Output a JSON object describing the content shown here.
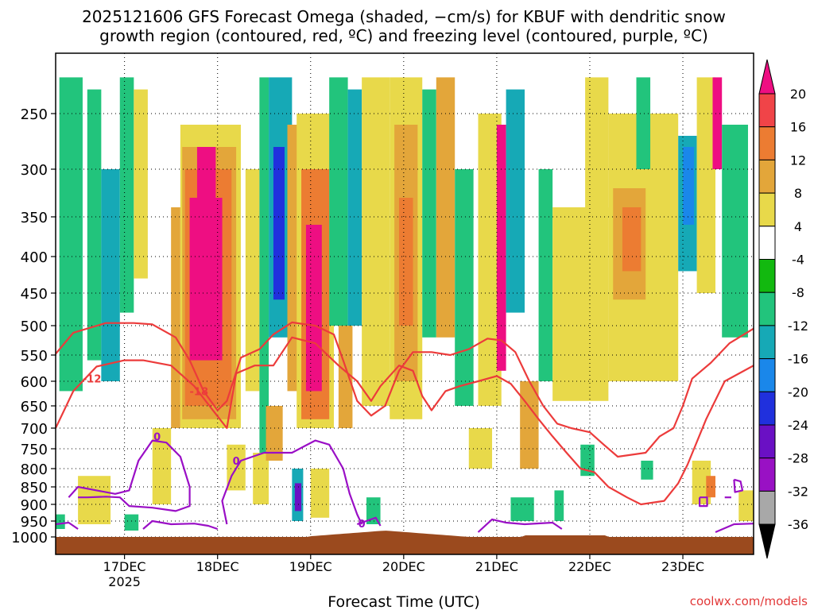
{
  "chart_data": {
    "type": "heatmap",
    "title_line1": "2025121606 GFS Forecast Omega (shaded, −cm/s) for KBUF with dendritic snow",
    "title_line2": "growth region (contoured, red, ºC) and freezing level (contoured, purple, ºC)",
    "xlabel": "Forecast Time (UTC)",
    "credit": "coolwx.com/models",
    "x_range_days": [
      16.26,
      23.76
    ],
    "x_ticks": [
      {
        "day": 17,
        "label": "17DEC",
        "sublabel": "2025"
      },
      {
        "day": 18,
        "label": "18DEC"
      },
      {
        "day": 19,
        "label": "19DEC"
      },
      {
        "day": 20,
        "label": "20DEC"
      },
      {
        "day": 21,
        "label": "21DEC"
      },
      {
        "day": 22,
        "label": "22DEC"
      },
      {
        "day": 23,
        "label": "23DEC"
      }
    ],
    "y_ticks": [
      250,
      300,
      350,
      400,
      450,
      500,
      550,
      600,
      650,
      700,
      750,
      800,
      850,
      900,
      950,
      1000
    ],
    "colorbar": {
      "labels": [
        "20",
        "16",
        "12",
        "8",
        "4",
        "-4",
        "-8",
        "-12",
        "-16",
        "-20",
        "-24",
        "-28",
        "-32",
        "-36"
      ],
      "colors": [
        "#ee0e82",
        "#f04448",
        "#ec7c32",
        "#e3a63a",
        "#e8d94a",
        "#ffffff",
        "#12b90f",
        "#22c47c",
        "#16a9b6",
        "#1a87ea",
        "#2030dd",
        "#6a10c4",
        "#9911c4",
        "#a8a8a8",
        "#000000"
      ]
    },
    "omega_cells": [
      {
        "t0": 16.3,
        "t1": 16.55,
        "p0": 220,
        "p1": 620,
        "v": -8
      },
      {
        "t0": 16.6,
        "t1": 16.75,
        "p0": 230,
        "p1": 560,
        "v": -8
      },
      {
        "t0": 16.75,
        "t1": 16.95,
        "p0": 300,
        "p1": 600,
        "v": -12
      },
      {
        "t0": 16.95,
        "t1": 17.1,
        "p0": 220,
        "p1": 480,
        "v": -8
      },
      {
        "t0": 17.1,
        "t1": 17.25,
        "p0": 230,
        "p1": 430,
        "v": 5
      },
      {
        "t0": 17.3,
        "t1": 17.5,
        "p0": 700,
        "p1": 900,
        "v": 5
      },
      {
        "t0": 17.5,
        "t1": 17.6,
        "p0": 340,
        "p1": 700,
        "v": 8
      },
      {
        "t0": 17.6,
        "t1": 18.25,
        "p0": 260,
        "p1": 700,
        "v": 5
      },
      {
        "t0": 17.62,
        "t1": 18.2,
        "p0": 280,
        "p1": 680,
        "v": 10
      },
      {
        "t0": 17.65,
        "t1": 18.15,
        "p0": 300,
        "p1": 650,
        "v": 15
      },
      {
        "t0": 17.7,
        "t1": 18.05,
        "p0": 330,
        "p1": 560,
        "v": 21
      },
      {
        "t0": 17.78,
        "t1": 17.98,
        "p0": 280,
        "p1": 360,
        "v": 21
      },
      {
        "t0": 18.3,
        "t1": 18.45,
        "p0": 300,
        "p1": 620,
        "v": 5
      },
      {
        "t0": 18.45,
        "t1": 18.55,
        "p0": 220,
        "p1": 800,
        "v": -8
      },
      {
        "t0": 18.55,
        "t1": 18.8,
        "p0": 220,
        "p1": 520,
        "v": -14
      },
      {
        "t0": 18.6,
        "t1": 18.72,
        "p0": 280,
        "p1": 460,
        "v": -22
      },
      {
        "t0": 18.75,
        "t1": 18.9,
        "p0": 260,
        "p1": 620,
        "v": 8
      },
      {
        "t0": 18.85,
        "t1": 19.25,
        "p0": 250,
        "p1": 700,
        "v": 5
      },
      {
        "t0": 18.9,
        "t1": 19.2,
        "p0": 300,
        "p1": 680,
        "v": 15
      },
      {
        "t0": 18.95,
        "t1": 19.12,
        "p0": 360,
        "p1": 620,
        "v": 21
      },
      {
        "t0": 19.2,
        "t1": 19.4,
        "p0": 220,
        "p1": 500,
        "v": -8
      },
      {
        "t0": 19.3,
        "t1": 19.45,
        "p0": 500,
        "p1": 700,
        "v": 10
      },
      {
        "t0": 19.4,
        "t1": 19.55,
        "p0": 230,
        "p1": 500,
        "v": -12
      },
      {
        "t0": 19.55,
        "t1": 19.85,
        "p0": 220,
        "p1": 650,
        "v": 5
      },
      {
        "t0": 19.85,
        "t1": 20.2,
        "p0": 220,
        "p1": 680,
        "v": 5
      },
      {
        "t0": 19.9,
        "t1": 20.15,
        "p0": 260,
        "p1": 600,
        "v": 10
      },
      {
        "t0": 19.95,
        "t1": 20.1,
        "p0": 330,
        "p1": 500,
        "v": 15
      },
      {
        "t0": 20.2,
        "t1": 20.35,
        "p0": 230,
        "p1": 520,
        "v": -8
      },
      {
        "t0": 20.35,
        "t1": 20.55,
        "p0": 220,
        "p1": 520,
        "v": 8
      },
      {
        "t0": 20.55,
        "t1": 20.75,
        "p0": 300,
        "p1": 650,
        "v": -8
      },
      {
        "t0": 20.8,
        "t1": 21.05,
        "p0": 250,
        "p1": 650,
        "v": 5
      },
      {
        "t0": 21.0,
        "t1": 21.1,
        "p0": 260,
        "p1": 580,
        "v": 21
      },
      {
        "t0": 21.1,
        "t1": 21.3,
        "p0": 230,
        "p1": 480,
        "v": -12
      },
      {
        "t0": 21.25,
        "t1": 21.45,
        "p0": 600,
        "p1": 800,
        "v": 8
      },
      {
        "t0": 21.45,
        "t1": 21.6,
        "p0": 300,
        "p1": 600,
        "v": -8
      },
      {
        "t0": 21.6,
        "t1": 22.2,
        "p0": 340,
        "p1": 640,
        "v": 5
      },
      {
        "t0": 21.95,
        "t1": 22.2,
        "p0": 220,
        "p1": 350,
        "v": 5
      },
      {
        "t0": 22.2,
        "t1": 22.95,
        "p0": 250,
        "p1": 600,
        "v": 5
      },
      {
        "t0": 22.25,
        "t1": 22.6,
        "p0": 320,
        "p1": 460,
        "v": 10
      },
      {
        "t0": 22.35,
        "t1": 22.55,
        "p0": 340,
        "p1": 420,
        "v": 14
      },
      {
        "t0": 22.5,
        "t1": 22.65,
        "p0": 220,
        "p1": 300,
        "v": -8
      },
      {
        "t0": 22.95,
        "t1": 23.15,
        "p0": 270,
        "p1": 420,
        "v": -12
      },
      {
        "t0": 23.0,
        "t1": 23.12,
        "p0": 280,
        "p1": 360,
        "v": -17
      },
      {
        "t0": 23.15,
        "t1": 23.35,
        "p0": 220,
        "p1": 450,
        "v": 5
      },
      {
        "t0": 23.32,
        "t1": 23.42,
        "p0": 220,
        "p1": 300,
        "v": 21
      },
      {
        "t0": 23.42,
        "t1": 23.7,
        "p0": 260,
        "p1": 520,
        "v": -8
      },
      {
        "t0": 16.5,
        "t1": 16.85,
        "p0": 820,
        "p1": 960,
        "v": 5
      },
      {
        "t0": 16.26,
        "t1": 16.36,
        "p0": 930,
        "p1": 975,
        "v": -8
      },
      {
        "t0": 17.0,
        "t1": 17.15,
        "p0": 930,
        "p1": 980,
        "v": -8
      },
      {
        "t0": 18.1,
        "t1": 18.3,
        "p0": 740,
        "p1": 860,
        "v": 5
      },
      {
        "t0": 18.38,
        "t1": 18.55,
        "p0": 760,
        "p1": 900,
        "v": 5
      },
      {
        "t0": 18.52,
        "t1": 18.7,
        "p0": 650,
        "p1": 780,
        "v": 10
      },
      {
        "t0": 18.8,
        "t1": 18.92,
        "p0": 800,
        "p1": 950,
        "v": -12
      },
      {
        "t0": 18.83,
        "t1": 18.9,
        "p0": 840,
        "p1": 920,
        "v": -26
      },
      {
        "t0": 19.0,
        "t1": 19.2,
        "p0": 800,
        "p1": 940,
        "v": 5
      },
      {
        "t0": 19.6,
        "t1": 19.75,
        "p0": 880,
        "p1": 960,
        "v": -8
      },
      {
        "t0": 20.7,
        "t1": 20.95,
        "p0": 700,
        "p1": 800,
        "v": 5
      },
      {
        "t0": 21.15,
        "t1": 21.4,
        "p0": 880,
        "p1": 950,
        "v": -8
      },
      {
        "t0": 21.62,
        "t1": 21.72,
        "p0": 860,
        "p1": 950,
        "v": -8
      },
      {
        "t0": 21.9,
        "t1": 22.05,
        "p0": 740,
        "p1": 820,
        "v": -8
      },
      {
        "t0": 22.55,
        "t1": 22.68,
        "p0": 780,
        "p1": 830,
        "v": -8
      },
      {
        "t0": 23.1,
        "t1": 23.3,
        "p0": 780,
        "p1": 900,
        "v": 5
      },
      {
        "t0": 23.25,
        "t1": 23.35,
        "p0": 820,
        "p1": 880,
        "v": 12
      },
      {
        "t0": 23.6,
        "t1": 23.76,
        "p0": 860,
        "p1": 950,
        "v": 5
      }
    ],
    "contours_dgz": [
      {
        "label": "-12",
        "label_at": [
          16.65,
          595
        ],
        "points": [
          [
            16.26,
            700
          ],
          [
            16.45,
            620
          ],
          [
            16.7,
            572
          ],
          [
            17.0,
            560
          ],
          [
            17.2,
            560
          ],
          [
            17.5,
            570
          ],
          [
            17.75,
            610
          ],
          [
            17.95,
            660
          ],
          [
            18.1,
            700
          ],
          [
            18.2,
            585
          ],
          [
            18.4,
            570
          ],
          [
            18.6,
            570
          ],
          [
            18.8,
            520
          ],
          [
            19.05,
            530
          ],
          [
            19.3,
            570
          ],
          [
            19.5,
            600
          ],
          [
            19.65,
            640
          ],
          [
            19.75,
            610
          ],
          [
            19.95,
            570
          ],
          [
            20.1,
            580
          ],
          [
            20.2,
            630
          ],
          [
            20.3,
            660
          ],
          [
            20.45,
            620
          ],
          [
            20.6,
            610
          ],
          [
            20.8,
            600
          ],
          [
            21.0,
            590
          ],
          [
            21.15,
            605
          ],
          [
            21.3,
            640
          ],
          [
            21.45,
            680
          ],
          [
            21.6,
            720
          ],
          [
            21.75,
            760
          ],
          [
            21.9,
            800
          ],
          [
            22.05,
            810
          ],
          [
            22.2,
            850
          ],
          [
            22.4,
            880
          ],
          [
            22.55,
            900
          ],
          [
            22.8,
            890
          ],
          [
            22.95,
            840
          ],
          [
            23.05,
            790
          ],
          [
            23.25,
            680
          ],
          [
            23.45,
            600
          ],
          [
            23.76,
            570
          ]
        ]
      },
      {
        "label": "-18",
        "label_at": [
          17.8,
          620
        ],
        "points": [
          [
            16.26,
            548
          ],
          [
            16.45,
            512
          ],
          [
            16.8,
            496
          ],
          [
            17.1,
            496
          ],
          [
            17.3,
            498
          ],
          [
            17.55,
            520
          ],
          [
            17.7,
            560
          ],
          [
            17.85,
            620
          ],
          [
            18.0,
            660
          ],
          [
            18.1,
            640
          ],
          [
            18.25,
            555
          ],
          [
            18.45,
            540
          ],
          [
            18.6,
            515
          ],
          [
            18.8,
            495
          ],
          [
            19.05,
            500
          ],
          [
            19.25,
            515
          ],
          [
            19.35,
            560
          ],
          [
            19.5,
            640
          ],
          [
            19.65,
            672
          ],
          [
            19.8,
            650
          ],
          [
            19.95,
            580
          ],
          [
            20.1,
            545
          ],
          [
            20.3,
            545
          ],
          [
            20.5,
            550
          ],
          [
            20.7,
            540
          ],
          [
            20.9,
            522
          ],
          [
            21.05,
            525
          ],
          [
            21.2,
            545
          ],
          [
            21.35,
            600
          ],
          [
            21.5,
            650
          ],
          [
            21.65,
            690
          ],
          [
            21.8,
            700
          ],
          [
            22.0,
            710
          ],
          [
            22.15,
            740
          ],
          [
            22.3,
            770
          ],
          [
            22.6,
            760
          ],
          [
            22.75,
            720
          ],
          [
            22.9,
            700
          ],
          [
            23.0,
            650
          ],
          [
            23.1,
            595
          ],
          [
            23.3,
            565
          ],
          [
            23.5,
            530
          ],
          [
            23.76,
            505
          ]
        ]
      }
    ],
    "contours_freezing": [
      {
        "label": "0",
        "label_at": [
          17.35,
          720
        ],
        "points": [
          [
            16.4,
            880
          ],
          [
            16.5,
            850
          ],
          [
            16.7,
            860
          ],
          [
            16.9,
            870
          ],
          [
            17.05,
            860
          ],
          [
            17.15,
            780
          ],
          [
            17.3,
            730
          ],
          [
            17.45,
            735
          ],
          [
            17.6,
            770
          ],
          [
            17.7,
            850
          ],
          [
            17.7,
            905
          ],
          [
            17.55,
            920
          ],
          [
            17.3,
            910
          ],
          [
            17.05,
            905
          ],
          [
            16.95,
            880
          ],
          [
            16.8,
            878
          ],
          [
            16.6,
            880
          ],
          [
            16.5,
            880
          ]
        ]
      },
      {
        "label": "0",
        "label_at": [
          18.2,
          780
        ],
        "points": [
          [
            18.1,
            960
          ],
          [
            18.05,
            890
          ],
          [
            18.15,
            820
          ],
          [
            18.25,
            780
          ],
          [
            18.5,
            760
          ],
          [
            18.8,
            760
          ],
          [
            19.05,
            730
          ],
          [
            19.2,
            740
          ],
          [
            19.35,
            800
          ],
          [
            19.42,
            870
          ],
          [
            19.5,
            930
          ],
          [
            19.55,
            960
          ]
        ]
      },
      {
        "label": "0",
        "label_at": [
          19.55,
          957
        ],
        "points": [
          [
            19.5,
            960
          ],
          [
            19.55,
            955
          ],
          [
            19.7,
            940
          ],
          [
            19.75,
            965
          ]
        ]
      },
      {
        "label": "",
        "label_at": [
          16.3,
          950
        ],
        "points": [
          [
            16.26,
            960
          ],
          [
            16.4,
            955
          ],
          [
            16.5,
            975
          ]
        ]
      },
      {
        "label": "",
        "label_at": [
          17.3,
          960
        ],
        "points": [
          [
            17.2,
            975
          ],
          [
            17.3,
            950
          ],
          [
            17.5,
            960
          ],
          [
            17.75,
            958
          ],
          [
            17.9,
            965
          ],
          [
            18.0,
            975
          ]
        ]
      },
      {
        "label": "",
        "label_at": [
          21.0,
          950
        ],
        "points": [
          [
            20.8,
            985
          ],
          [
            20.95,
            945
          ],
          [
            21.1,
            955
          ],
          [
            21.3,
            960
          ],
          [
            21.6,
            955
          ],
          [
            21.7,
            975
          ]
        ]
      },
      {
        "label": "",
        "label_at": [
          23.2,
          900
        ],
        "points": [
          [
            23.18,
            880
          ],
          [
            23.26,
            880
          ],
          [
            23.26,
            905
          ],
          [
            23.18,
            905
          ],
          [
            23.18,
            880
          ]
        ]
      },
      {
        "label": "",
        "label_at": [
          23.6,
          850
        ],
        "points": [
          [
            23.55,
            830
          ],
          [
            23.62,
            835
          ],
          [
            23.64,
            860
          ],
          [
            23.56,
            865
          ],
          [
            23.55,
            830
          ]
        ]
      },
      {
        "label": "",
        "label_at": [
          23.5,
          880
        ],
        "points": [
          [
            23.45,
            880
          ],
          [
            23.52,
            880
          ]
        ]
      },
      {
        "label": "",
        "label_at": [
          23.6,
          960
        ],
        "points": [
          [
            23.35,
            985
          ],
          [
            23.55,
            960
          ],
          [
            23.76,
            958
          ]
        ]
      }
    ]
  }
}
